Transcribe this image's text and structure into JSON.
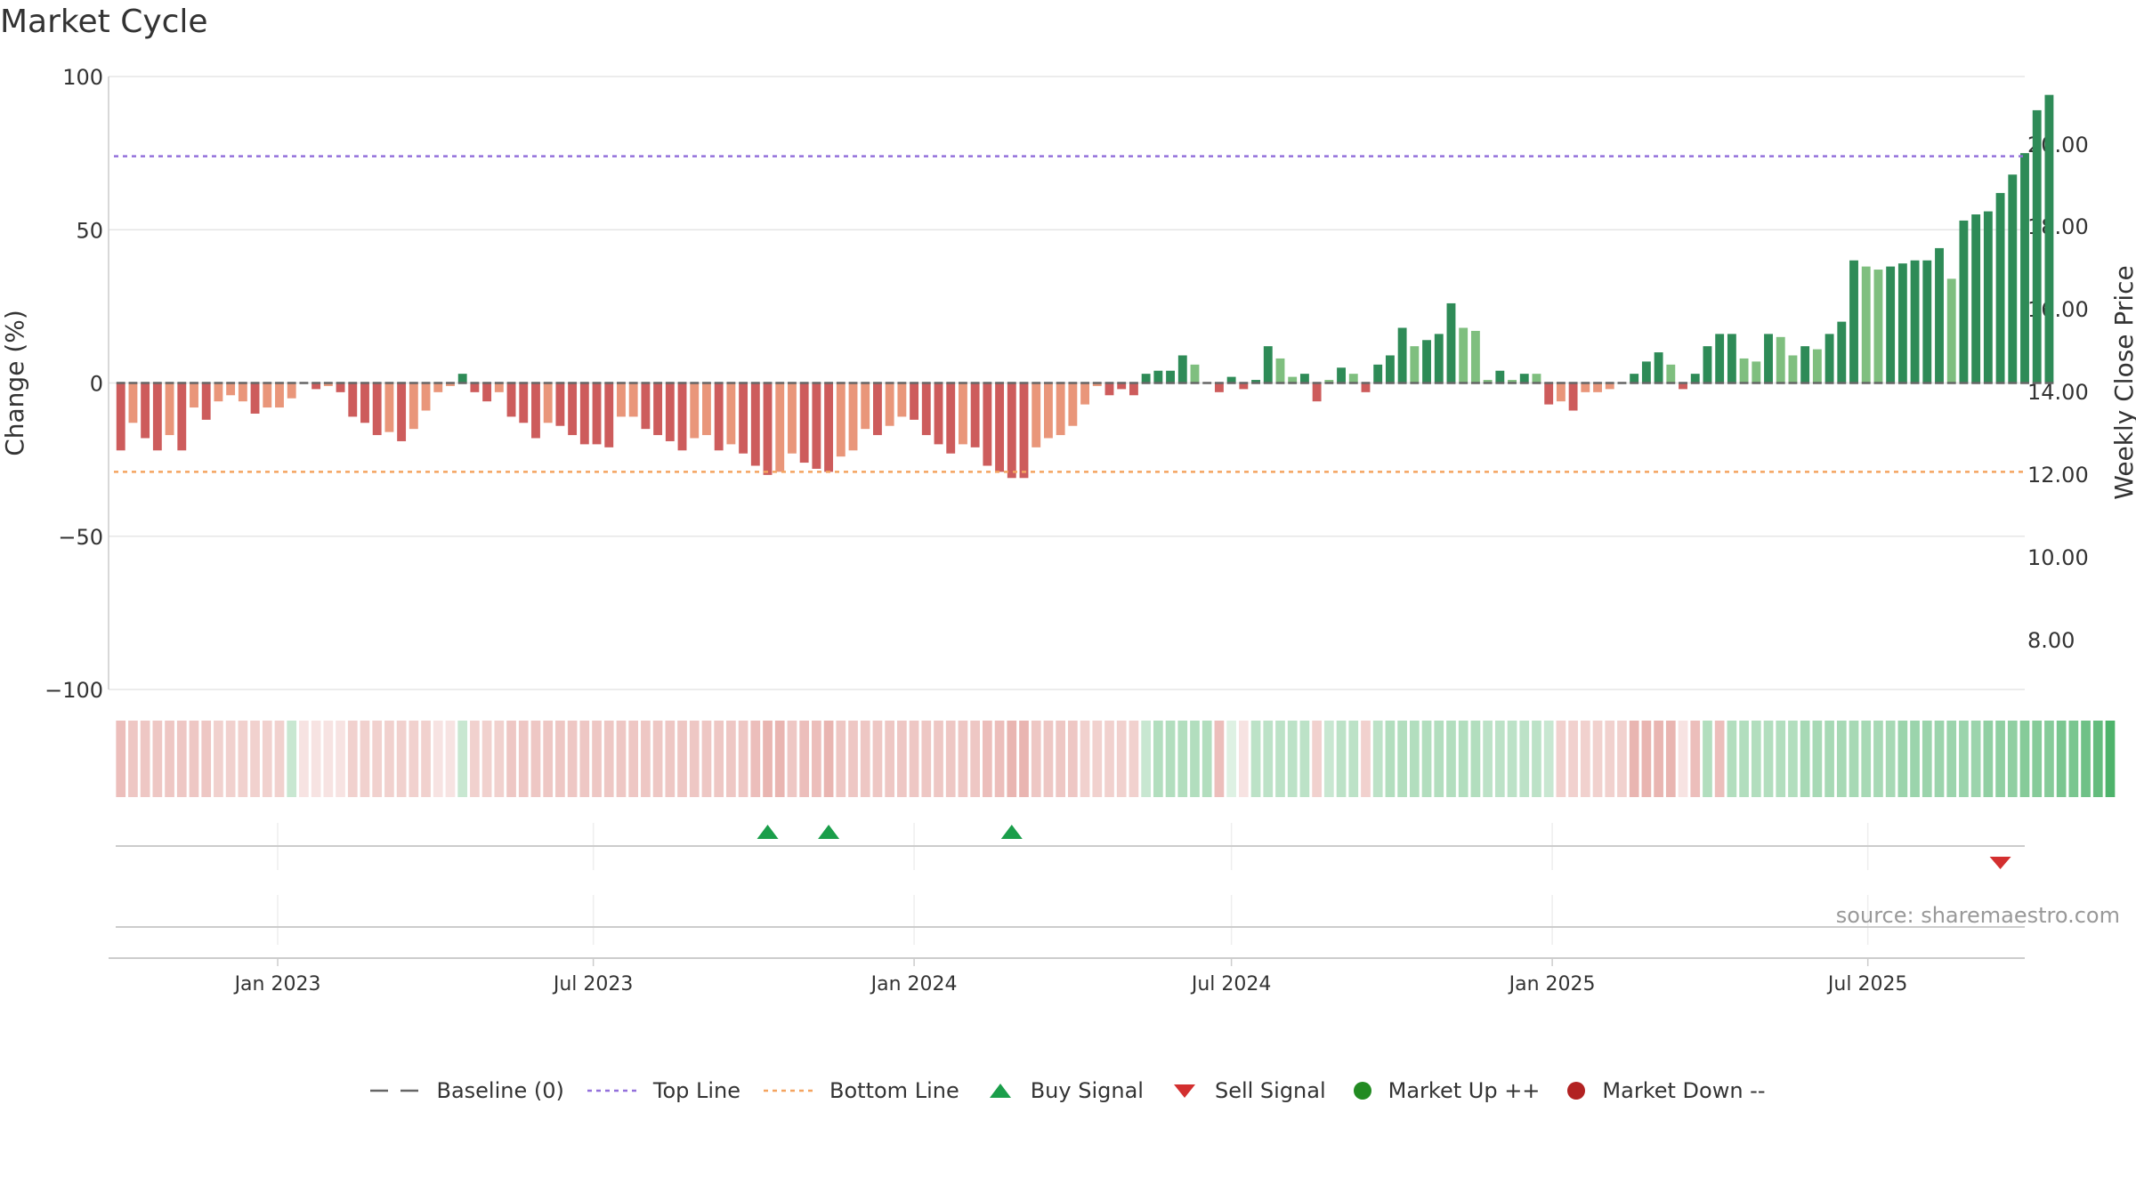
{
  "title": "Market Cycle",
  "source": "source: sharemaestro.com",
  "chart_data": {
    "type": "bar",
    "y_left_label": "Change (%)",
    "y_right_label": "Weekly Close Price",
    "y_left_range": [
      -100,
      100
    ],
    "y_left_ticks": [
      "100",
      "50",
      "0",
      "−50",
      "−100"
    ],
    "y_right_ticks": [
      "20.00",
      "18.00",
      "16.00",
      "14.00",
      "12.00",
      "10.00",
      "8.00"
    ],
    "x_ticks": [
      "Jan 2023",
      "Jul 2023",
      "Jan 2024",
      "Jul 2024",
      "Jan 2025",
      "Jul 2025"
    ],
    "x_range": [
      "2022-09-26",
      "2025-09-29"
    ],
    "x_tick_dates": [
      "2023-01-01",
      "2023-07-01",
      "2024-01-01",
      "2024-07-01",
      "2025-01-01",
      "2025-07-01"
    ],
    "start_week": "2022-10-03",
    "week_step_days": 7,
    "top_line": 74,
    "bottom_line": -29,
    "grid": true,
    "legend_position": "bottom",
    "colors": {
      "strong_up": "#2e8b57",
      "weak_up": "#7fbf7f",
      "strong_down": "#cd5c5c",
      "weak_down": "#e9967a",
      "top_line": "#9370db",
      "bottom_line": "#f4a460",
      "buy": "#1a9e4a",
      "sell": "#d32f2f",
      "market_up": "#228b22",
      "market_down": "#b22222",
      "baseline": "#666666"
    },
    "values": [
      -22,
      -13,
      -18,
      -22,
      -17,
      -22,
      -8,
      -12,
      -6,
      -4,
      -6,
      -10,
      -8,
      -8,
      -5,
      0,
      -2,
      -1,
      -3,
      -11,
      -13,
      -17,
      -16,
      -19,
      -15,
      -9,
      -3,
      -1,
      3,
      -3,
      -6,
      -3,
      -11,
      -13,
      -18,
      -13,
      -14,
      -17,
      -20,
      -20,
      -21,
      -11,
      -11,
      -15,
      -17,
      -19,
      -22,
      -18,
      -17,
      -22,
      -20,
      -23,
      -27,
      -30,
      -29,
      -23,
      -26,
      -28,
      -29,
      -24,
      -22,
      -15,
      -17,
      -14,
      -11,
      -12,
      -17,
      -20,
      -23,
      -20,
      -21,
      -27,
      -29,
      -31,
      -31,
      -21,
      -18,
      -17,
      -14,
      -7,
      -1,
      -4,
      -2,
      -4,
      3,
      4,
      4,
      9,
      6,
      0,
      -3,
      2,
      -2,
      1,
      12,
      8,
      2,
      3,
      -6,
      1,
      5,
      3,
      -3,
      6,
      9,
      18,
      12,
      14,
      16,
      26,
      18,
      17,
      1,
      4,
      1,
      3,
      3,
      -7,
      -6,
      -9,
      -3,
      -3,
      -2,
      0,
      3,
      7,
      10,
      6,
      -2,
      3,
      12,
      16,
      16,
      8,
      7,
      16,
      15,
      9,
      12,
      11,
      16,
      20,
      40,
      38,
      37,
      38,
      39,
      40,
      40,
      44,
      34,
      53,
      55,
      56,
      62,
      68,
      75,
      89,
      94
    ],
    "strength": [
      "s",
      "w",
      "s",
      "s",
      "w",
      "s",
      "w",
      "s",
      "w",
      "w",
      "w",
      "s",
      "w",
      "w",
      "w",
      "w",
      "s",
      "w",
      "s",
      "s",
      "s",
      "s",
      "w",
      "s",
      "w",
      "w",
      "w",
      "w",
      "s",
      "s",
      "s",
      "w",
      "s",
      "s",
      "s",
      "w",
      "s",
      "s",
      "s",
      "s",
      "s",
      "w",
      "w",
      "s",
      "s",
      "s",
      "s",
      "w",
      "w",
      "s",
      "w",
      "s",
      "s",
      "s",
      "w",
      "w",
      "s",
      "s",
      "s",
      "w",
      "w",
      "w",
      "s",
      "w",
      "w",
      "s",
      "s",
      "s",
      "s",
      "w",
      "s",
      "s",
      "s",
      "s",
      "s",
      "w",
      "w",
      "w",
      "w",
      "w",
      "w",
      "s",
      "s",
      "s",
      "s",
      "s",
      "s",
      "s",
      "w",
      "w",
      "s",
      "s",
      "s",
      "s",
      "s",
      "w",
      "w",
      "s",
      "s",
      "w",
      "s",
      "w",
      "s",
      "s",
      "s",
      "s",
      "w",
      "s",
      "s",
      "s",
      "w",
      "w",
      "w",
      "s",
      "w",
      "s",
      "w",
      "s",
      "w",
      "s",
      "w",
      "w",
      "w",
      "w",
      "s",
      "s",
      "s",
      "w",
      "s",
      "s",
      "s",
      "s",
      "s",
      "w",
      "w",
      "s",
      "w",
      "w",
      "s",
      "w",
      "s",
      "s",
      "s",
      "w",
      "w",
      "s",
      "s",
      "s",
      "s",
      "s",
      "w",
      "s",
      "s",
      "s",
      "s",
      "s",
      "s",
      "s",
      "s",
      "s"
    ],
    "bands": [
      35,
      30,
      30,
      30,
      30,
      30,
      30,
      30,
      25,
      25,
      25,
      25,
      25,
      25,
      25,
      15,
      15,
      15,
      15,
      25,
      25,
      25,
      25,
      25,
      25,
      25,
      15,
      15,
      25,
      25,
      25,
      25,
      30,
      30,
      30,
      30,
      30,
      30,
      30,
      30,
      30,
      30,
      30,
      30,
      30,
      30,
      30,
      30,
      30,
      30,
      30,
      30,
      35,
      40,
      40,
      30,
      35,
      35,
      40,
      30,
      30,
      30,
      30,
      30,
      30,
      30,
      30,
      30,
      30,
      30,
      30,
      35,
      35,
      40,
      40,
      30,
      30,
      30,
      30,
      25,
      25,
      25,
      25,
      25,
      25,
      35,
      35,
      35,
      35,
      35,
      35,
      15,
      15,
      30,
      30,
      30,
      30,
      30,
      25,
      25,
      30,
      30,
      25,
      30,
      35,
      35,
      35,
      35,
      35,
      35,
      35,
      35,
      30,
      30,
      30,
      30,
      30,
      25,
      25,
      25,
      25,
      25,
      25,
      25,
      40,
      40,
      40,
      40,
      15,
      35,
      35,
      35,
      35,
      35,
      35,
      35,
      35,
      35,
      40,
      40,
      40,
      40,
      40,
      40,
      40,
      40,
      45,
      45,
      45,
      45,
      45,
      45,
      45,
      50,
      50,
      50,
      55,
      55,
      55,
      60,
      60,
      65,
      70,
      80
    ],
    "band_dir": [
      "d",
      "d",
      "d",
      "d",
      "d",
      "d",
      "d",
      "d",
      "d",
      "d",
      "d",
      "d",
      "d",
      "d",
      "u",
      "d",
      "d",
      "d",
      "d",
      "d",
      "d",
      "d",
      "d",
      "d",
      "d",
      "d",
      "d",
      "d",
      "u",
      "d",
      "d",
      "d",
      "d",
      "d",
      "d",
      "d",
      "d",
      "d",
      "d",
      "d",
      "d",
      "d",
      "d",
      "d",
      "d",
      "d",
      "d",
      "d",
      "d",
      "d",
      "d",
      "d",
      "d",
      "d",
      "d",
      "d",
      "d",
      "d",
      "d",
      "d",
      "d",
      "d",
      "d",
      "d",
      "d",
      "d",
      "d",
      "d",
      "d",
      "d",
      "d",
      "d",
      "d",
      "d",
      "d",
      "d",
      "d",
      "d",
      "d",
      "d",
      "d",
      "d",
      "d",
      "d",
      "u",
      "u",
      "u",
      "u",
      "u",
      "u",
      "d",
      "u",
      "d",
      "u",
      "u",
      "u",
      "u",
      "u",
      "d",
      "u",
      "u",
      "u",
      "d",
      "u",
      "u",
      "u",
      "u",
      "u",
      "u",
      "u",
      "u",
      "u",
      "u",
      "u",
      "u",
      "u",
      "u",
      "u",
      "d",
      "d",
      "d",
      "d",
      "d",
      "d",
      "d",
      "d",
      "d",
      "d",
      "d",
      "d",
      "u",
      "d",
      "u",
      "u",
      "u",
      "u",
      "u",
      "u",
      "u",
      "u",
      "u",
      "u",
      "u",
      "u",
      "u",
      "u",
      "u",
      "u",
      "u",
      "u",
      "u",
      "u",
      "u",
      "u",
      "u",
      "u",
      "u",
      "u",
      "u",
      "u",
      "u",
      "u",
      "u",
      "u"
    ],
    "buy_signals": [
      53,
      58,
      73
    ],
    "sell_signals": [
      154
    ],
    "legend": [
      {
        "label": "Baseline (0)",
        "icon": "dash-icon"
      },
      {
        "label": "Top Line",
        "icon": "dotted-purple-icon"
      },
      {
        "label": "Bottom Line",
        "icon": "dotted-orange-icon"
      },
      {
        "label": "Buy Signal",
        "icon": "triangle-up-icon"
      },
      {
        "label": "Sell Signal",
        "icon": "triangle-down-icon"
      },
      {
        "label": "Market Up ++",
        "icon": "green-dot-icon"
      },
      {
        "label": "Market Down --",
        "icon": "red-dot-icon"
      }
    ]
  }
}
